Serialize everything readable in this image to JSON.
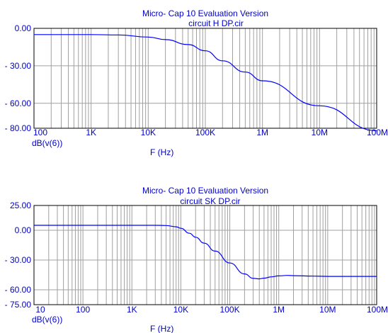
{
  "chart_data": [
    {
      "type": "line",
      "title": "Micro- Cap 10 Evaluation Version",
      "subtitle": "circuit H DP.cir",
      "xlabel": "F (Hz)",
      "ylabel": "dB(v(6))",
      "xscale": "log",
      "xlim": [
        100,
        100000000
      ],
      "ylim": [
        -80,
        0
      ],
      "x_ticks": [
        "100",
        "1K",
        "10K",
        "100K",
        "1M",
        "10M",
        "100M"
      ],
      "y_ticks": [
        "0.00",
        "- 30.00",
        "- 60.00",
        "- 80.00"
      ],
      "grid": true,
      "series": [
        {
          "color": "#0000ff",
          "x": [
            100,
            1000,
            3000,
            10000,
            20000,
            50000,
            100000,
            200000,
            500000,
            1000000,
            10000000,
            100000000
          ],
          "y": [
            -5,
            -5,
            -5.3,
            -7,
            -9,
            -13,
            -18,
            -26,
            -35,
            -42,
            -62,
            -82
          ]
        }
      ]
    },
    {
      "type": "line",
      "title": "Micro- Cap 10 Evaluation Version",
      "subtitle": "circuit SK DP.cir",
      "xlabel": "F (Hz)",
      "ylabel": "dB(v(6))",
      "xscale": "log",
      "xlim": [
        10,
        100000000
      ],
      "ylim": [
        -75,
        25
      ],
      "x_ticks": [
        "10",
        "100",
        "1K",
        "10K",
        "100K",
        "1M",
        "10M",
        "100M"
      ],
      "y_ticks": [
        "25.00",
        "0.00",
        "- 30.00",
        "- 60.00",
        "- 75.00"
      ],
      "grid": true,
      "series": [
        {
          "color": "#0000ff",
          "x": [
            10,
            100,
            1000,
            3000,
            5000,
            8000,
            10000,
            15000,
            20000,
            30000,
            50000,
            100000,
            200000,
            300000,
            400000,
            500000,
            700000,
            1000000,
            1500000,
            2000000,
            5000000,
            10000000,
            100000000
          ],
          "y": [
            5,
            5,
            5,
            5,
            4.8,
            3.5,
            2,
            -3,
            -7,
            -13,
            -21,
            -33,
            -44,
            -48.5,
            -49,
            -48.3,
            -47,
            -46,
            -45.5,
            -45.8,
            -46.2,
            -46.5,
            -46.5
          ]
        }
      ]
    }
  ]
}
